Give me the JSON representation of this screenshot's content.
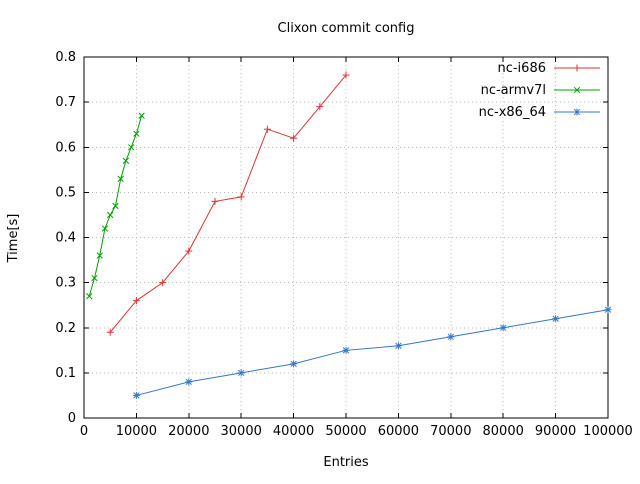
{
  "chart_data": {
    "type": "line",
    "title": "Clixon commit config",
    "xlabel": "Entries",
    "ylabel": "Time[s]",
    "xlim": [
      0,
      100000
    ],
    "ylim": [
      0,
      0.8
    ],
    "x_ticks": [
      0,
      10000,
      20000,
      30000,
      40000,
      50000,
      60000,
      70000,
      80000,
      90000,
      100000
    ],
    "y_ticks": [
      0,
      0.1,
      0.2,
      0.3,
      0.4,
      0.5,
      0.6,
      0.7,
      0.8
    ],
    "grid": true,
    "grid_color": "#b8b8b8",
    "axis_color": "#000000",
    "legend_position": "top-right",
    "series": [
      {
        "name": "nc-i686",
        "color": "#dd3333",
        "marker": "plus",
        "x": [
          5000,
          10000,
          15000,
          20000,
          25000,
          30000,
          35000,
          40000,
          45000,
          50000
        ],
        "y": [
          0.19,
          0.26,
          0.3,
          0.37,
          0.48,
          0.49,
          0.64,
          0.62,
          0.69,
          0.76
        ]
      },
      {
        "name": "nc-armv7l",
        "color": "#00a000",
        "marker": "cross",
        "x": [
          1000,
          2000,
          3000,
          4000,
          5000,
          6000,
          7000,
          8000,
          9000,
          10000,
          11000
        ],
        "y": [
          0.27,
          0.31,
          0.36,
          0.42,
          0.45,
          0.47,
          0.53,
          0.57,
          0.6,
          0.63,
          0.67
        ]
      },
      {
        "name": "nc-x86_64",
        "color": "#3377c8",
        "marker": "asterisk",
        "x": [
          10000,
          20000,
          30000,
          40000,
          50000,
          60000,
          70000,
          80000,
          90000,
          100000
        ],
        "y": [
          0.05,
          0.08,
          0.1,
          0.12,
          0.15,
          0.16,
          0.18,
          0.2,
          0.22,
          0.24
        ]
      }
    ]
  }
}
